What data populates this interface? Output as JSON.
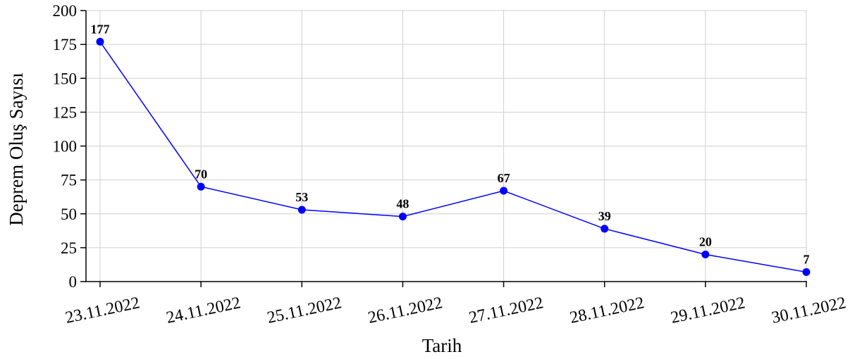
{
  "chart_data": {
    "type": "line",
    "xlabel": "Tarih",
    "ylabel": "Deprem Oluş Sayısı",
    "categories": [
      "23.11.2022",
      "24.11.2022",
      "25.11.2022",
      "26.11.2022",
      "27.11.2022",
      "28.11.2022",
      "29.11.2022",
      "30.11.2022"
    ],
    "series": [
      {
        "color": "#0000ff",
        "values": [
          177,
          70,
          53,
          48,
          67,
          39,
          20,
          7
        ]
      }
    ],
    "ylim": [
      0,
      200
    ],
    "yticks": [
      0,
      25,
      50,
      75,
      100,
      125,
      150,
      175,
      200
    ],
    "grid": true,
    "data_labels": true
  }
}
